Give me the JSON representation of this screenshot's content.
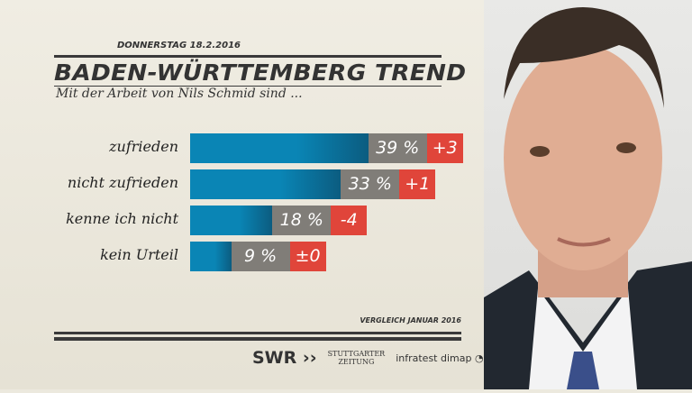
{
  "header": {
    "date": "DONNERSTAG  18.2.2016",
    "title": "BADEN-WÜRTTEMBERG TREND",
    "subtitle": "Mit der Arbeit von Nils Schmid sind ..."
  },
  "chart_data": {
    "type": "bar",
    "title": "BADEN-WÜRTTEMBERG TREND",
    "subtitle": "Mit der Arbeit von Nils Schmid sind ...",
    "categories": [
      "zufrieden",
      "nicht zufrieden",
      "kenne ich nicht",
      "kein Urteil"
    ],
    "values": [
      39,
      33,
      18,
      9
    ],
    "value_labels": [
      "39 %",
      "33 %",
      "18 %",
      "9 %"
    ],
    "changes": [
      "+3",
      "+1",
      "-4",
      "±0"
    ],
    "unit": "%",
    "comparison": "VERGLEICH JANUAR 2016",
    "colors": {
      "bar": "#0a85b5",
      "value": "#807d78",
      "change": "#e0453a"
    }
  },
  "footer": {
    "swr": "SWR",
    "sz1": "STUTTGARTER",
    "sz2": "ZEITUNG",
    "infratest": "infratest dimap"
  }
}
